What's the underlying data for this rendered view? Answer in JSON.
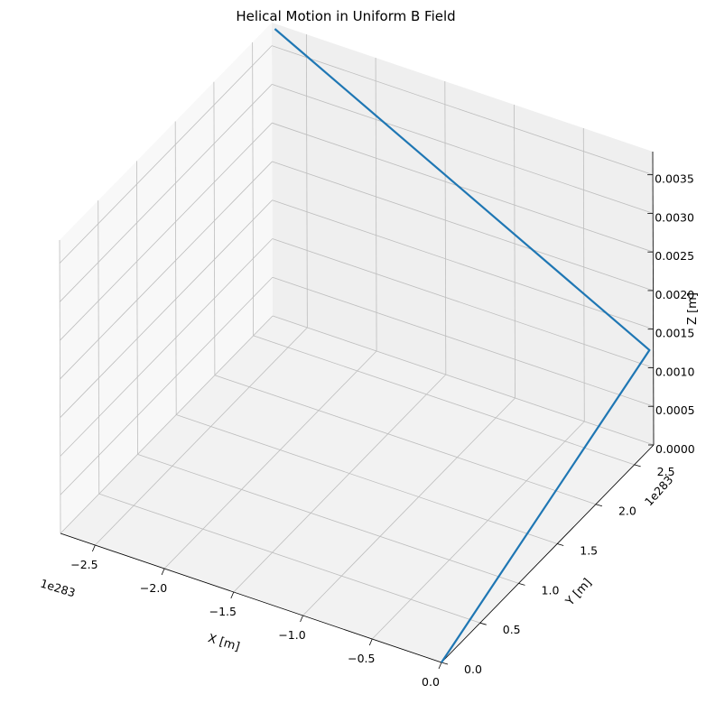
{
  "chart_data": {
    "type": "line3d",
    "title": "Helical Motion in Uniform B Field",
    "xlabel": "X [m]",
    "ylabel": "Y [m]",
    "zlabel": "Z [m]",
    "x_offset_label": "1e283",
    "y_offset_label": "1e283",
    "x_ticks": [
      "−2.5",
      "−2.0",
      "−1.5",
      "−1.0",
      "−0.5",
      "0.0"
    ],
    "y_ticks": [
      "0.0",
      "0.5",
      "1.0",
      "1.5",
      "2.0",
      "2.5"
    ],
    "z_ticks": [
      "0.0000",
      "0.0005",
      "0.0010",
      "0.0015",
      "0.0020",
      "0.0025",
      "0.0030",
      "0.0035"
    ],
    "x_tick_values": [
      -2.5,
      -2.0,
      -1.5,
      -1.0,
      -0.5,
      0.0
    ],
    "y_tick_values": [
      0.0,
      0.5,
      1.0,
      1.5,
      2.0,
      2.5
    ],
    "z_tick_values": [
      0.0,
      0.0005,
      0.001,
      0.0015,
      0.002,
      0.0025,
      0.003,
      0.0035
    ],
    "xlim": [
      -2.75,
      0.0
    ],
    "ylim": [
      0.0,
      2.75
    ],
    "zlim": [
      0.0,
      0.0038
    ],
    "grid": true,
    "series": [
      {
        "color": "#1f77b4",
        "x": [
          0.0,
          0.0,
          -2.7
        ],
        "y": [
          0.0,
          2.7,
          2.7
        ],
        "z": [
          0.0,
          0.00128,
          0.0038
        ]
      }
    ]
  }
}
